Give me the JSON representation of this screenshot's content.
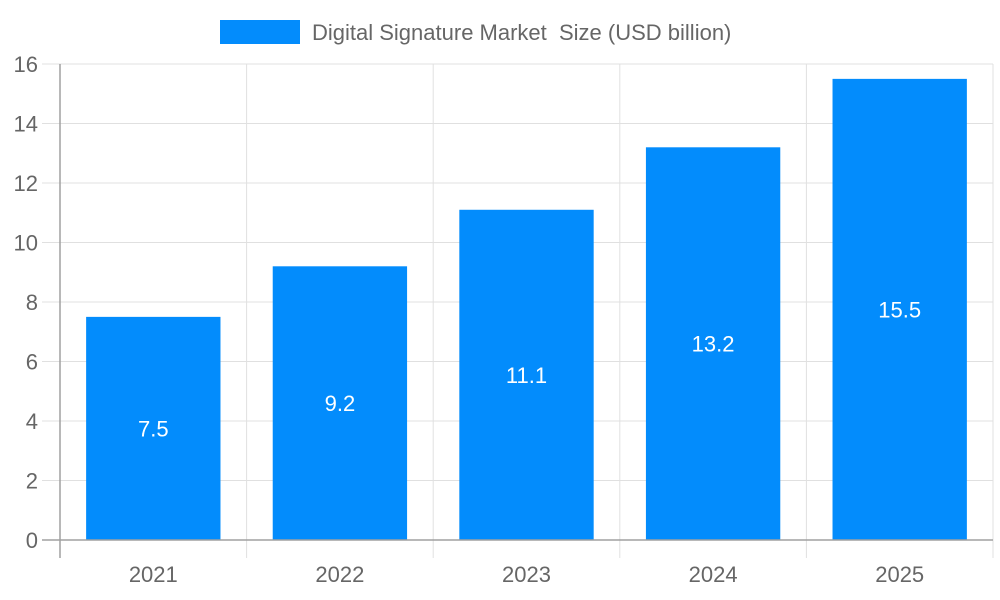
{
  "chart_data": {
    "type": "bar",
    "categories": [
      "2021",
      "2022",
      "2023",
      "2024",
      "2025"
    ],
    "series": [
      {
        "name": "Digital Signature Market  Size (USD billion)",
        "values": [
          7.5,
          9.2,
          11.1,
          13.2,
          15.5
        ],
        "color": "#038cfc"
      }
    ],
    "data_labels": [
      "7.5",
      "9.2",
      "11.1",
      "13.2",
      "15.5"
    ],
    "title": "",
    "xlabel": "",
    "ylabel": "",
    "ylim": [
      0,
      16
    ],
    "yticks": [
      "0",
      "2",
      "4",
      "6",
      "8",
      "10",
      "12",
      "14",
      "16"
    ],
    "grid": true,
    "legend": "top"
  }
}
